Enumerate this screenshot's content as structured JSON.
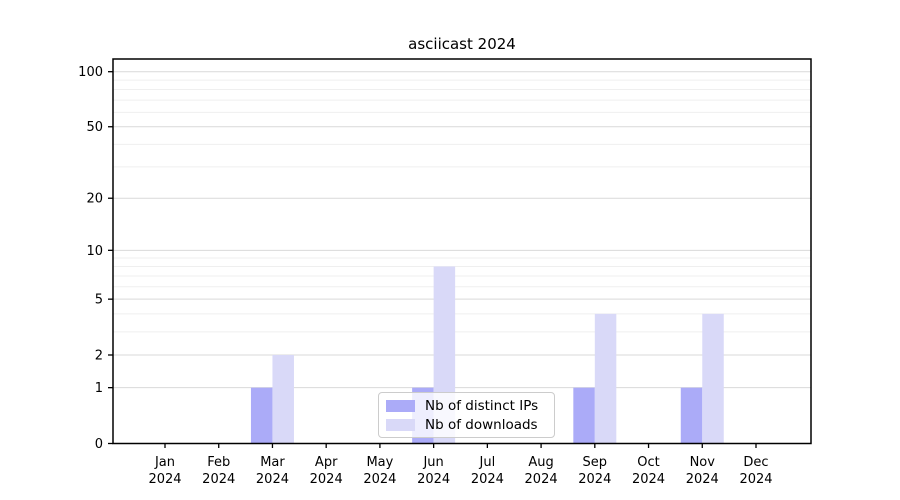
{
  "title": "asciicast 2024",
  "chart_data": {
    "type": "bar",
    "title": "asciicast 2024",
    "scale": "log1p",
    "categories": [
      "Jan",
      "Feb",
      "Mar",
      "Apr",
      "May",
      "Jun",
      "Jul",
      "Aug",
      "Sep",
      "Oct",
      "Nov",
      "Dec"
    ],
    "category_year": "2024",
    "series": [
      {
        "name": "Nb of distinct IPs",
        "color": "#ababf8",
        "values": [
          0,
          0,
          1,
          0,
          0,
          1,
          0,
          0,
          1,
          0,
          1,
          0
        ]
      },
      {
        "name": "Nb of downloads",
        "color": "#d9d9f8",
        "values": [
          0,
          0,
          2,
          0,
          0,
          8,
          0,
          0,
          4,
          0,
          4,
          0
        ]
      }
    ],
    "y_ticks": [
      0,
      1,
      2,
      5,
      10,
      20,
      50,
      100
    ],
    "y_minor_ticks": [
      3,
      4,
      6,
      7,
      8,
      9,
      30,
      40,
      60,
      70,
      80,
      90
    ],
    "ylim": [
      0,
      117
    ],
    "xlabel": "",
    "ylabel": "",
    "grid": true,
    "legend_position": "lower center",
    "colors": {
      "grid_major": "#d9d9d9",
      "grid_minor": "#efefef",
      "axis_frame": "#000000",
      "legend_border": "#cccccc",
      "text": "#000000",
      "background": "#ffffff"
    }
  }
}
